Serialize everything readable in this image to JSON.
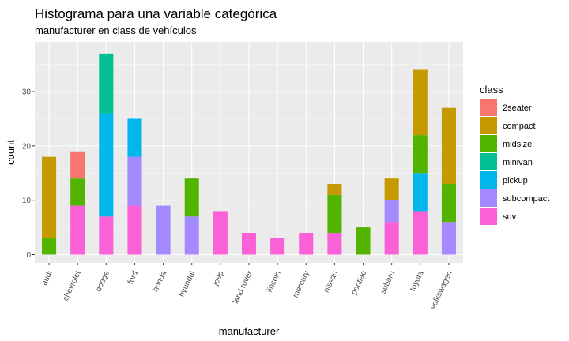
{
  "chart_data": {
    "type": "bar",
    "stacked": true,
    "title": "Histograma para una variable categórica",
    "subtitle": "manufacturer en class de vehículos",
    "xlabel": "manufacturer",
    "ylabel": "count",
    "ylim": [
      0,
      38
    ],
    "yticks": [
      0,
      10,
      20,
      30
    ],
    "grid": true,
    "legend_title": "class",
    "legend_position": "right",
    "categories": [
      "audi",
      "chevrolet",
      "dodge",
      "ford",
      "honda",
      "hyundai",
      "jeep",
      "land rover",
      "lincoln",
      "mercury",
      "nissan",
      "pontiac",
      "subaru",
      "toyota",
      "volkswagen"
    ],
    "series": [
      {
        "name": "2seater",
        "color": "#F8766D",
        "values": [
          0,
          5,
          0,
          0,
          0,
          0,
          0,
          0,
          0,
          0,
          0,
          0,
          0,
          0,
          0
        ]
      },
      {
        "name": "compact",
        "color": "#C49A00",
        "values": [
          15,
          0,
          0,
          0,
          0,
          0,
          0,
          0,
          0,
          0,
          2,
          0,
          4,
          12,
          14
        ]
      },
      {
        "name": "midsize",
        "color": "#53B400",
        "values": [
          3,
          5,
          0,
          0,
          0,
          7,
          0,
          0,
          0,
          0,
          7,
          5,
          0,
          7,
          7
        ]
      },
      {
        "name": "minivan",
        "color": "#00C094",
        "values": [
          0,
          0,
          11,
          0,
          0,
          0,
          0,
          0,
          0,
          0,
          0,
          0,
          0,
          0,
          0
        ]
      },
      {
        "name": "pickup",
        "color": "#00B6EB",
        "values": [
          0,
          0,
          19,
          7,
          0,
          0,
          0,
          0,
          0,
          0,
          0,
          0,
          0,
          7,
          0
        ]
      },
      {
        "name": "subcompact",
        "color": "#A58AFF",
        "values": [
          0,
          0,
          0,
          9,
          9,
          7,
          0,
          0,
          0,
          0,
          0,
          0,
          4,
          0,
          6
        ]
      },
      {
        "name": "suv",
        "color": "#FB61D7",
        "values": [
          0,
          9,
          7,
          9,
          0,
          0,
          8,
          4,
          3,
          4,
          4,
          0,
          6,
          8,
          0
        ]
      }
    ]
  },
  "colors": {
    "panel_background": "#EBEBEB",
    "grid_major": "#FFFFFF"
  }
}
